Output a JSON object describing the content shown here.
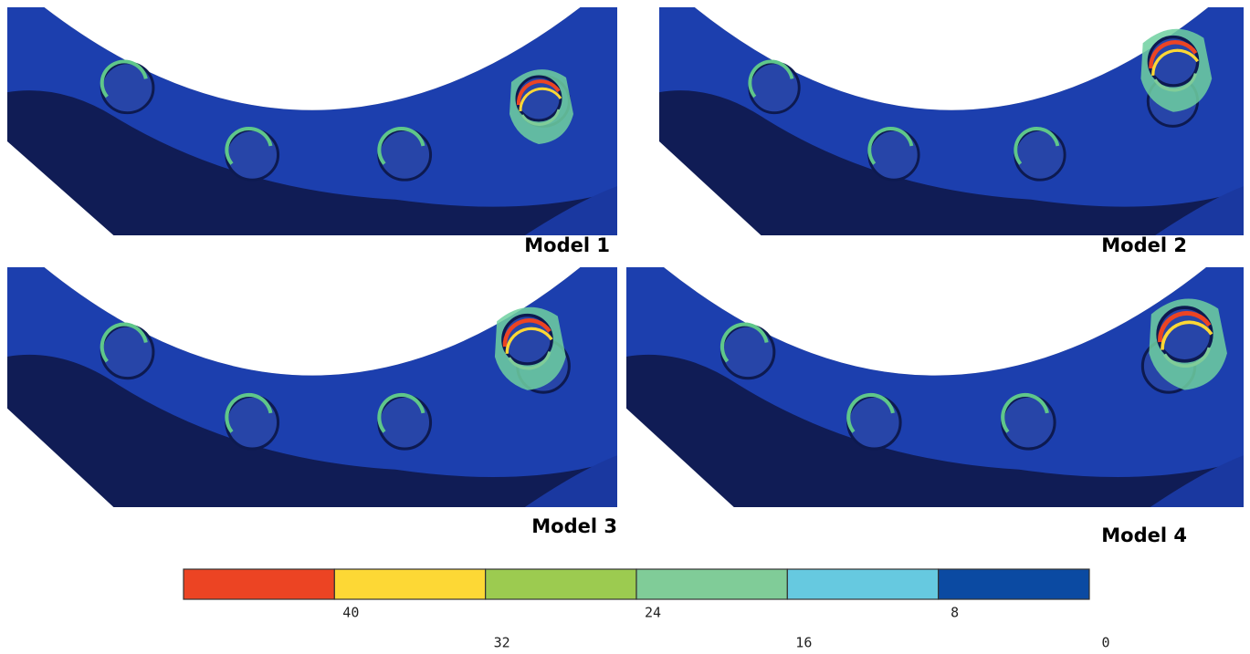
{
  "panels": [
    {
      "label": "Model 1"
    },
    {
      "label": "Model 2"
    },
    {
      "label": "Model 3"
    },
    {
      "label": "Model 4"
    }
  ],
  "legend": {
    "colors": [
      "#ec4423",
      "#fdd835",
      "#9ccb50",
      "#80cc98",
      "#66c9e0",
      "#0b4aa2"
    ],
    "ticks": [
      40,
      32,
      24,
      16,
      8,
      0
    ]
  }
}
